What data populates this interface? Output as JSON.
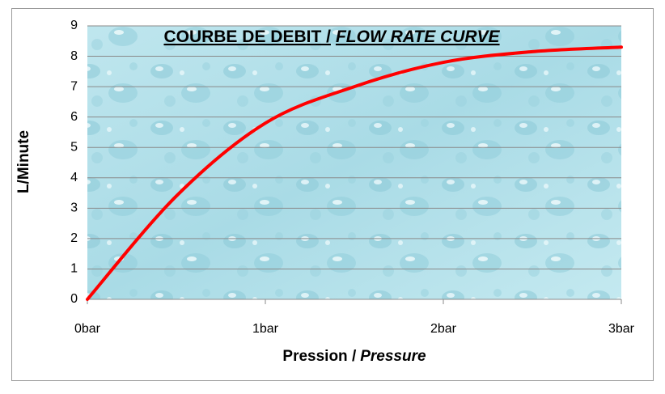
{
  "chart_data": {
    "type": "line",
    "title": [
      "COURBE DE DEBIT /",
      "FLOW RATE CURVE"
    ],
    "x_label": [
      "Pression /",
      "Pressure"
    ],
    "y_label": "L/Minute",
    "x": [
      0,
      0.5,
      1,
      1.5,
      2,
      2.5,
      3
    ],
    "series": [
      {
        "color": "#ff0000",
        "values": [
          0,
          3.4,
          5.8,
          7.0,
          7.8,
          8.15,
          8.3
        ]
      }
    ],
    "xlim": [
      0,
      3
    ],
    "xticks": [
      {
        "value": 0,
        "label": "0bar"
      },
      {
        "value": 1,
        "label": "1bar"
      },
      {
        "value": 2,
        "label": "2bar"
      },
      {
        "value": 3,
        "label": "3bar"
      }
    ],
    "ylim": [
      0,
      9
    ],
    "yticks": [
      0,
      1,
      2,
      3,
      4,
      5,
      6,
      7,
      8,
      9
    ],
    "grid": true
  }
}
